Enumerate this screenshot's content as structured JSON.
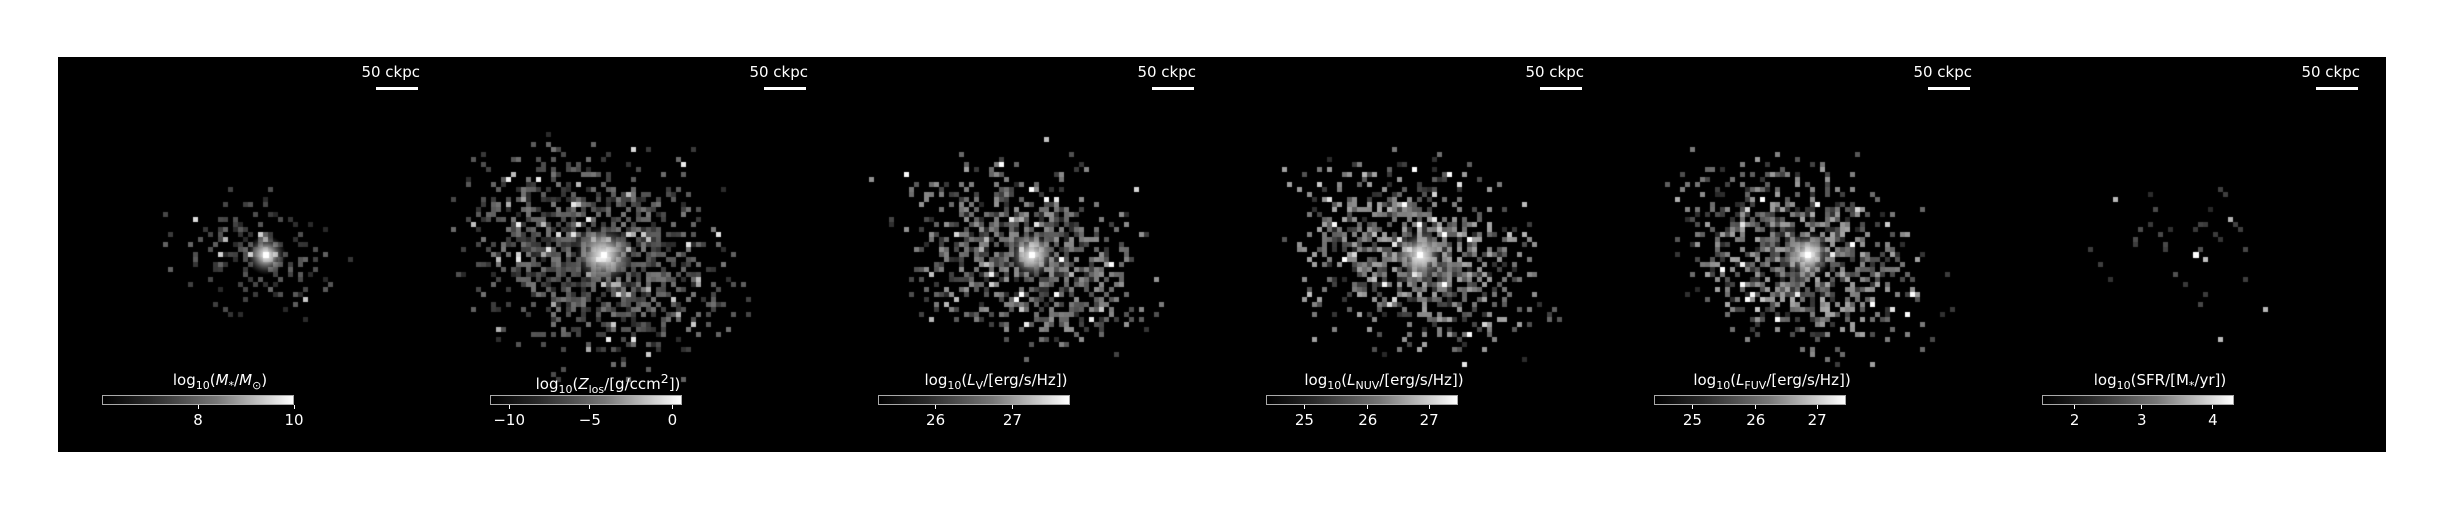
{
  "panels": [
    {
      "scale_label": "50 ckpc",
      "colorbar_title": "log10(M*/M⊙)",
      "colorbar_title_html": "log<sub>10</sub>(<i>M</i><sub>*</sub>/<i>M</i><sub>⊙</sub>)",
      "ticks": [
        "8",
        "10"
      ],
      "tick_positions_frac": [
        0.5,
        1.0
      ]
    },
    {
      "scale_label": "50 ckpc",
      "colorbar_title": "log10(Zlos/[g/ccm2])",
      "colorbar_title_html": "log<sub>10</sub>(<i>Z</i><sub>los</sub>/[g/ccm<sup>2</sup>])",
      "ticks": [
        "−10",
        "−5",
        "0"
      ],
      "tick_positions_frac": [
        0.1,
        0.52,
        0.95
      ]
    },
    {
      "scale_label": "50 ckpc",
      "colorbar_title": "log10(LV/[erg/s/Hz])",
      "colorbar_title_html": "log<sub>10</sub>(<i>L</i><sub>V</sub>/[erg/s/Hz])",
      "ticks": [
        "26",
        "27"
      ],
      "tick_positions_frac": [
        0.3,
        0.7
      ]
    },
    {
      "scale_label": "50 ckpc",
      "colorbar_title": "log10(LNUV/[erg/s/Hz])",
      "colorbar_title_html": "log<sub>10</sub>(<i>L</i><sub>NUV</sub>/[erg/s/Hz])",
      "ticks": [
        "25",
        "26",
        "27"
      ],
      "tick_positions_frac": [
        0.2,
        0.53,
        0.85
      ]
    },
    {
      "scale_label": "50 ckpc",
      "colorbar_title": "log10(LFUV/[erg/s/Hz])",
      "colorbar_title_html": "log<sub>10</sub>(<i>L</i><sub>FUV</sub>/[erg/s/Hz])",
      "ticks": [
        "25",
        "26",
        "27"
      ],
      "tick_positions_frac": [
        0.2,
        0.53,
        0.85
      ]
    },
    {
      "scale_label": "50 ckpc",
      "colorbar_title": "log10(SFR/[M*/yr])",
      "colorbar_title_html": "log<sub>10</sub>(SFR/[M<sub>*</sub>/yr])",
      "ticks": [
        "2",
        "3",
        "4"
      ],
      "tick_positions_frac": [
        0.17,
        0.52,
        0.89
      ]
    }
  ]
}
